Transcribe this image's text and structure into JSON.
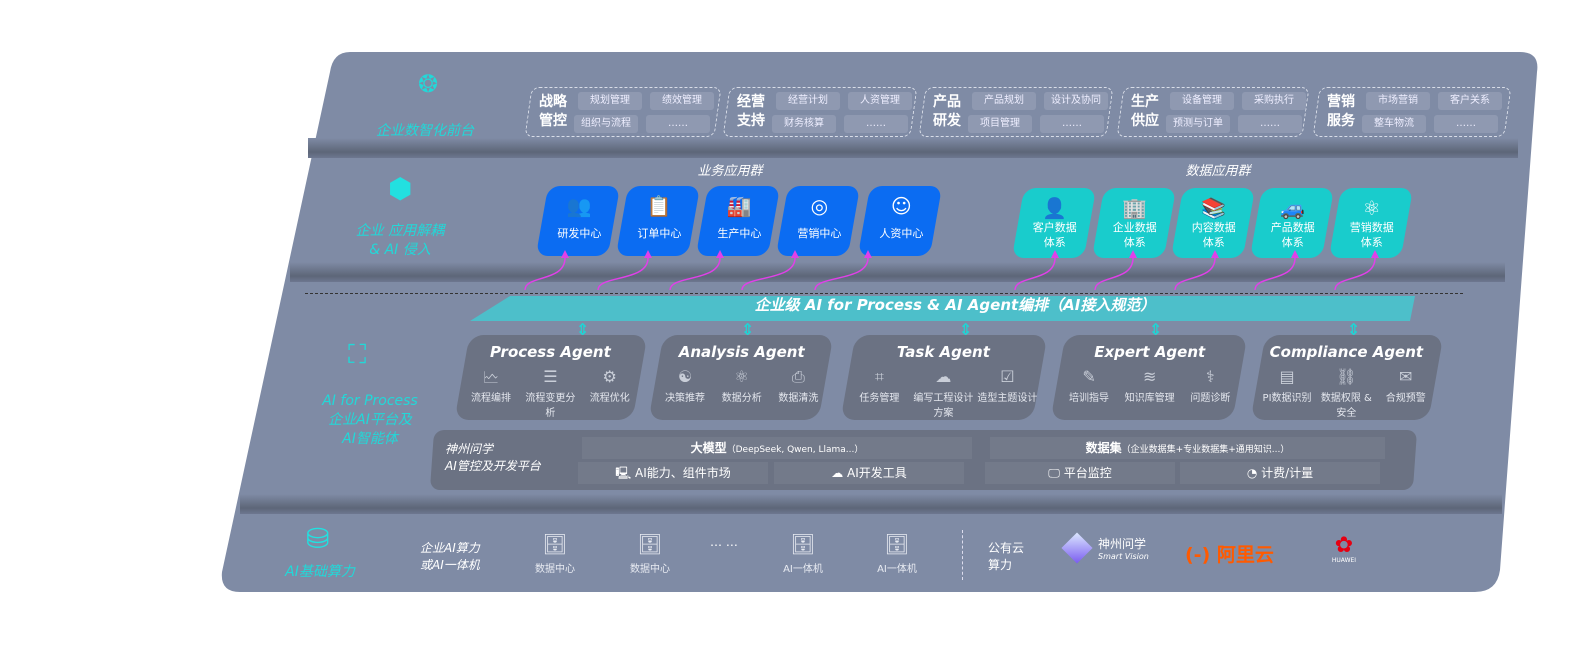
{
  "layers": {
    "front": {
      "label": "企业数智化前台",
      "icon": "brain-icon"
    },
    "apps": {
      "label_line1": "企业 应用解耦",
      "label_line2": "& AI 侵入",
      "icon": "molecule-icon"
    },
    "ai": {
      "label_line1": "AI for Process",
      "label_line2": "企业AI平台及",
      "label_line3": "AI智能体",
      "icon": "face-scan-icon"
    },
    "infra": {
      "label": "AI基础算力",
      "icon": "database-icon"
    }
  },
  "groups": [
    {
      "t1": "战略",
      "t2": "管控",
      "chips": [
        "规划管理",
        "绩效管理",
        "组织与流程",
        "……"
      ]
    },
    {
      "t1": "经营",
      "t2": "支持",
      "chips": [
        "经营计划",
        "人资管理",
        "财务核算",
        "……"
      ]
    },
    {
      "t1": "产品",
      "t2": "研发",
      "chips": [
        "产品规划",
        "设计及协同",
        "项目管理",
        "……"
      ]
    },
    {
      "t1": "生产",
      "t2": "供应",
      "chips": [
        "设备管理",
        "采购执行",
        "预测与订单",
        "……"
      ]
    },
    {
      "t1": "营销",
      "t2": "服务",
      "chips": [
        "市场营销",
        "客户关系",
        "整车物流",
        "……"
      ]
    }
  ],
  "business_apps": {
    "title": "业务应用群",
    "items": [
      {
        "label": "研发中心",
        "icon": "users-icon"
      },
      {
        "label": "订单中心",
        "icon": "clipboard-icon"
      },
      {
        "label": "生产中心",
        "icon": "factory-icon"
      },
      {
        "label": "营销中心",
        "icon": "target-icon"
      },
      {
        "label": "人资中心",
        "icon": "person-icon"
      }
    ]
  },
  "data_apps": {
    "title": "数据应用群",
    "items": [
      {
        "l1": "客户数据",
        "l2": "体系",
        "icon": "user-icon"
      },
      {
        "l1": "企业数据",
        "l2": "体系",
        "icon": "building-icon"
      },
      {
        "l1": "内容数据",
        "l2": "体系",
        "icon": "books-icon"
      },
      {
        "l1": "产品数据",
        "l2": "体系",
        "icon": "car-icon"
      },
      {
        "l1": "营销数据",
        "l2": "体系",
        "icon": "atom-icon"
      }
    ]
  },
  "banner": "企业级 AI for Process & AI Agent编排（AI接入规范）",
  "agents": [
    {
      "title": "Process Agent",
      "items": [
        "流程编排",
        "流程变更分析",
        "流程优化"
      ]
    },
    {
      "title": "Analysis Agent",
      "items": [
        "决策推荐",
        "数据分析",
        "数据清洗"
      ]
    },
    {
      "title": "Task Agent",
      "items": [
        "任务管理",
        "编写工程设计方案",
        "造型主题设计"
      ]
    },
    {
      "title": "Expert Agent",
      "items": [
        "培训指导",
        "知识库管理",
        "问题诊断"
      ]
    },
    {
      "title": "Compliance Agent",
      "items": [
        "PI数据识别",
        "数据权限 & 安全",
        "合规预警"
      ]
    }
  ],
  "platform": {
    "name1": "神州问学",
    "name2": "AI管控及开发平台",
    "model": "大模型",
    "model_sub": "（DeepSeek, Qwen, Llama...）",
    "dataset": "数据集",
    "dataset_sub": "（企业数据集+专业数据集+通用知识...）",
    "market": "AI能力、组件市场",
    "devtools": "AI开发工具",
    "monitor": "平台监控",
    "billing": "计费/计量"
  },
  "infra": {
    "title1": "企业AI算力",
    "title2": "或AI一体机",
    "items": [
      "数据中心",
      "数据中心",
      "AI一体机",
      "AI一体机"
    ],
    "ellipsis": "… …",
    "cloud1": "公有云",
    "cloud2": "算力",
    "vendors": [
      "神州问学",
      "Smart Vision",
      "阿里云",
      "HUAWEI"
    ]
  },
  "colors": {
    "panel": "#7f8ba5",
    "blue": "#0b6cf2",
    "teal": "#19cccc",
    "accent_text": "#22d8d8",
    "arrow": "#e040e8",
    "aliyun": "#ff5a00",
    "huawei": "#e60012"
  }
}
